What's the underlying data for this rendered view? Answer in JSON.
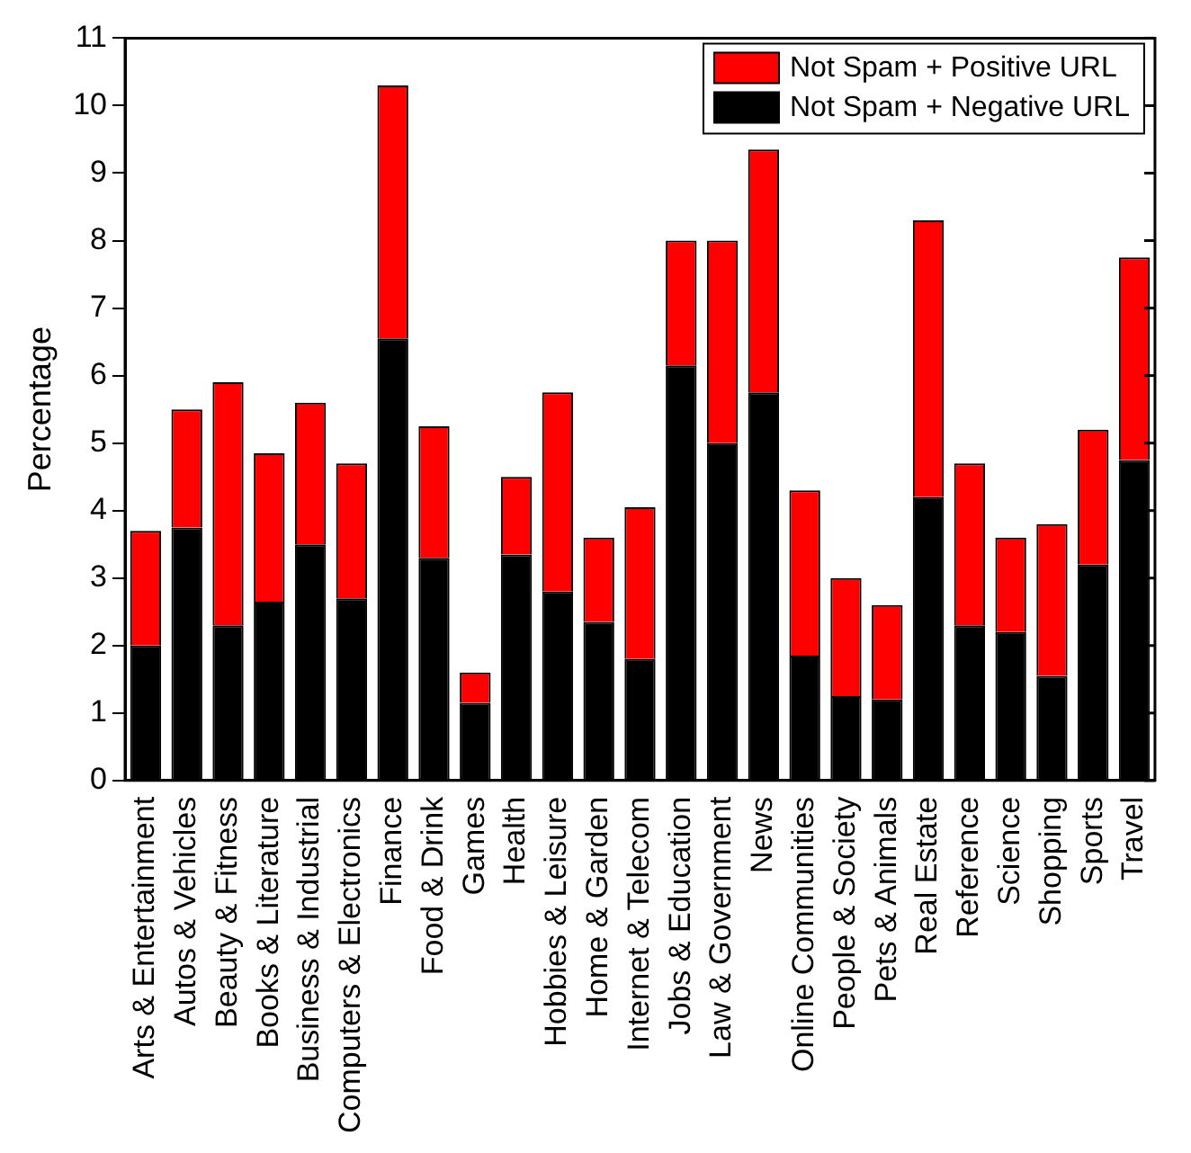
{
  "chart_data": {
    "type": "bar",
    "ylabel": "Percentage",
    "stacked": true,
    "legend": "top right",
    "grid": false,
    "categories": [
      "Arts & Entertainment",
      "Autos & Vehicles",
      "Beauty & Fitness",
      "Books & Literature",
      "Business & Industrial",
      "Computers & Electronics",
      "Finance",
      "Food & Drink",
      "Games",
      "Health",
      "Hobbies & Leisure",
      "Home & Garden",
      "Internet & Telecom",
      "Jobs & Education",
      "Law & Government",
      "News",
      "Online Communities",
      "People & Society",
      "Pets & Animals",
      "Real Estate",
      "Reference",
      "Science",
      "Shopping",
      "Sports",
      "Travel"
    ],
    "ylim": [
      0,
      11
    ],
    "yticks": [
      0,
      1,
      2,
      3,
      4,
      5,
      6,
      7,
      8,
      9,
      10,
      11
    ],
    "series": [
      {
        "name": "Not Spam + Negative URL",
        "color": "#000000",
        "values": [
          2.0,
          3.75,
          2.3,
          2.65,
          3.5,
          2.7,
          6.55,
          3.3,
          1.15,
          3.35,
          2.8,
          2.35,
          1.8,
          6.15,
          5.0,
          5.75,
          1.85,
          1.25,
          1.2,
          4.2,
          2.3,
          2.2,
          1.55,
          3.2,
          4.75
        ]
      },
      {
        "name": "Not Spam + Positive URL",
        "color": "#ff0000",
        "values": [
          1.7,
          1.75,
          3.6,
          2.2,
          2.1,
          2.0,
          3.75,
          1.95,
          0.45,
          1.15,
          2.95,
          1.25,
          2.25,
          1.85,
          3.0,
          3.6,
          2.45,
          1.75,
          1.4,
          4.1,
          2.4,
          1.4,
          2.25,
          2.0,
          3.0
        ]
      }
    ]
  }
}
